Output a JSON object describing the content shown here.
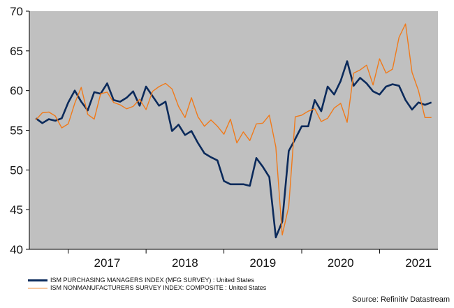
{
  "chart_data": {
    "type": "line",
    "y_ticks": [
      40,
      45,
      50,
      55,
      60,
      65,
      70
    ],
    "ylim": [
      40,
      70
    ],
    "x_ticks": [
      "2017",
      "2018",
      "2019",
      "2020",
      "2021"
    ],
    "xlim": [
      "2016-07",
      "2021-10"
    ],
    "grid": false,
    "colors": {
      "plot_background": "#c0c0c0",
      "pmi": "#0b2a5b",
      "nmi": "#f07a1a"
    },
    "months": [
      "2016-08",
      "2016-09",
      "2016-10",
      "2016-11",
      "2016-12",
      "2017-01",
      "2017-02",
      "2017-03",
      "2017-04",
      "2017-05",
      "2017-06",
      "2017-07",
      "2017-08",
      "2017-09",
      "2017-10",
      "2017-11",
      "2017-12",
      "2018-01",
      "2018-02",
      "2018-03",
      "2018-04",
      "2018-05",
      "2018-06",
      "2018-07",
      "2018-08",
      "2018-09",
      "2018-10",
      "2018-11",
      "2018-12",
      "2019-01",
      "2019-02",
      "2019-03",
      "2019-04",
      "2019-05",
      "2019-06",
      "2019-07",
      "2019-08",
      "2019-09",
      "2019-10",
      "2019-11",
      "2019-12",
      "2020-01",
      "2020-02",
      "2020-03",
      "2020-04",
      "2020-05",
      "2020-06",
      "2020-07",
      "2020-08",
      "2020-09",
      "2020-10",
      "2020-11",
      "2020-12",
      "2021-01",
      "2021-02",
      "2021-03",
      "2021-04",
      "2021-05",
      "2021-06",
      "2021-07",
      "2021-08",
      "2021-09"
    ],
    "series": [
      {
        "name": "ISM PURCHASING MANAGERS INDEX (MFG SURVEY) : United States",
        "color": "#0b2a5b",
        "values": [
          56.5,
          55.9,
          56.4,
          56.2,
          56.5,
          58.5,
          60.0,
          58.6,
          57.5,
          59.8,
          59.6,
          60.9,
          58.8,
          58.6,
          59.1,
          59.9,
          58.1,
          60.5,
          59.3,
          58.1,
          58.6,
          54.9,
          55.7,
          54.4,
          54.9,
          53.4,
          52.1,
          51.6,
          51.2,
          48.6,
          48.2,
          48.2,
          48.2,
          48.0,
          51.5,
          50.4,
          49.1,
          41.5,
          43.5,
          52.4,
          53.9,
          55.5,
          55.5,
          58.8,
          57.4,
          60.5,
          59.5,
          61.2,
          63.7,
          60.6,
          61.6,
          60.9,
          59.9,
          59.5,
          60.5,
          60.8,
          60.6,
          58.8,
          57.6,
          58.5,
          58.2,
          58.5
        ]
      },
      {
        "name": "ISM NONMANUFACTURERS SURVEY INDEX: COMPOSITE : United States",
        "color": "#f07a1a",
        "values": [
          56.3,
          57.2,
          57.3,
          56.8,
          55.3,
          55.8,
          58.4,
          60.4,
          57.0,
          56.4,
          59.6,
          59.8,
          58.5,
          58.2,
          57.7,
          58.0,
          58.9,
          57.6,
          59.9,
          60.5,
          60.9,
          60.2,
          58.0,
          56.6,
          59.1,
          56.7,
          55.5,
          56.3,
          55.5,
          54.5,
          56.4,
          53.4,
          54.8,
          53.7,
          55.8,
          55.9,
          56.9,
          52.9,
          41.8,
          45.4,
          56.7,
          56.9,
          57.4,
          57.7,
          56.1,
          56.5,
          57.8,
          58.4,
          56.0,
          62.2,
          62.6,
          63.2,
          60.7,
          64.0,
          62.2,
          62.7,
          66.7,
          68.4,
          62.3,
          60.0,
          56.6,
          56.6
        ]
      }
    ],
    "legend_placement": "bottom-left"
  },
  "legend": {
    "pmi": "ISM PURCHASING MANAGERS INDEX (MFG SURVEY) : United States",
    "nmi": "ISM NONMANUFACTURERS SURVEY INDEX: COMPOSITE : United States"
  },
  "source": "Source: Refinitiv Datastream"
}
